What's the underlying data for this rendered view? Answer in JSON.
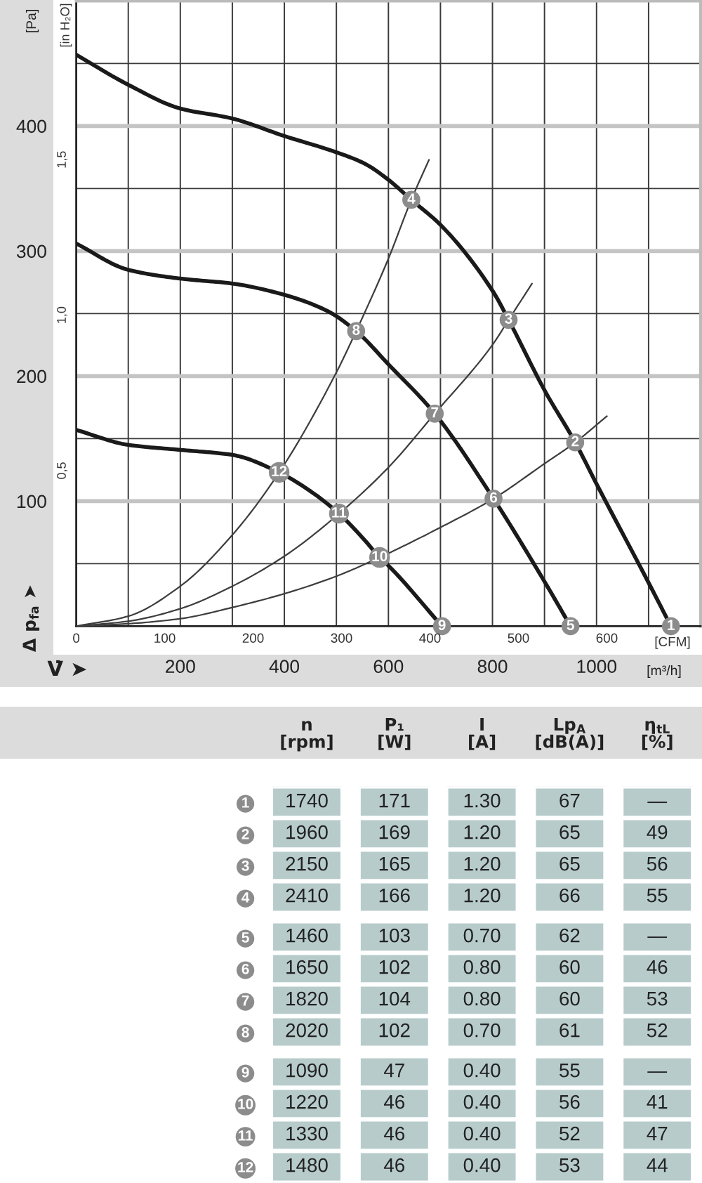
{
  "chart_data": [
    {
      "type": "line",
      "xlabel": "[m³/h]",
      "x2label": "[CFM]",
      "ylabel": "[Pa]",
      "y2label": "[in H₂O]",
      "xlim": [
        0,
        1200
      ],
      "xticks": [
        {
          "value": 100,
          "label": null
        },
        200,
        {
          "value": 300,
          "label": null
        },
        400,
        {
          "value": 500,
          "label": null
        },
        600,
        {
          "value": 700,
          "label": null
        },
        800,
        {
          "value": 900,
          "label": null
        },
        1000,
        {
          "value": 1100,
          "label": null
        }
      ],
      "x2lim": [
        0,
        706
      ],
      "x2ticks": [
        0,
        100,
        200,
        300,
        400,
        500,
        600
      ],
      "ylim": [
        0,
        500
      ],
      "yticks": [
        {
          "value": 50,
          "label": null
        },
        100,
        {
          "value": 150,
          "label": null
        },
        200,
        {
          "value": 250,
          "label": null
        },
        300,
        {
          "value": 350,
          "label": null
        },
        400,
        {
          "value": 450,
          "label": null
        }
      ],
      "y2lim": [
        0,
        2.01
      ],
      "y2ticks": [
        {
          "value": 0.5,
          "label": "0,5"
        },
        {
          "value": 1.0,
          "label": "1,0"
        },
        {
          "value": 1.5,
          "label": "1,5"
        }
      ],
      "grid": true,
      "series": [
        {
          "color": "#1a1a1a",
          "x": [
            0,
            100,
            200,
            300,
            400,
            500,
            554,
            600,
            644,
            700,
            802,
            831,
            901,
            959,
            1001,
            1101,
            1143
          ],
          "values": [
            457,
            433,
            414,
            406,
            392,
            379,
            370,
            357,
            341,
            321,
            267,
            245,
            188,
            147,
            113,
            34,
            0
          ]
        },
        {
          "color": "#1a1a1a",
          "x": [
            0,
            100,
            200,
            300,
            400,
            483,
            538,
            601,
            689,
            802,
            901,
            950
          ],
          "values": [
            306,
            285,
            278,
            274,
            265,
            252,
            236,
            209,
            170,
            102,
            35,
            0
          ]
        },
        {
          "color": "#1a1a1a",
          "x": [
            0,
            100,
            200,
            300,
            390,
            450,
            505,
            554,
            583,
            601,
            703
          ],
          "values": [
            157,
            145,
            141,
            137,
            123,
            108,
            90,
            69,
            55,
            48,
            0
          ]
        },
        {
          "color": "#3d3d3d",
          "x": [
            0,
            100,
            200,
            300,
            390,
            500,
            538,
            600,
            644,
            678
          ],
          "values": [
            0,
            8,
            32,
            73,
            123,
            203,
            236,
            294,
            341,
            373
          ]
        },
        {
          "color": "#3d3d3d",
          "x": [
            0,
            100,
            200,
            300,
            400,
            505,
            600,
            689,
            800,
            831,
            876
          ],
          "values": [
            0,
            4,
            14,
            32,
            56,
            90,
            127,
            170,
            225,
            245,
            274
          ]
        },
        {
          "color": "#3d3d3d",
          "x": [
            0,
            100,
            200,
            300,
            400,
            500,
            583,
            700,
            802,
            900,
            959,
            1020
          ],
          "values": [
            0,
            2,
            6,
            15,
            26,
            40,
            55,
            79,
            102,
            130,
            147,
            168
          ]
        }
      ],
      "annotations": [
        "V̇ ➤",
        "Δ p$_{fa}$ ➤",
        {
          "text": "1",
          "x": 1143,
          "y": 0
        },
        {
          "text": "2",
          "x": 959,
          "y": 147
        },
        {
          "text": "3",
          "x": 831,
          "y": 245
        },
        {
          "text": "4",
          "x": 644,
          "y": 341
        },
        {
          "text": "5",
          "x": 950,
          "y": 0
        },
        {
          "text": "6",
          "x": 802,
          "y": 102
        },
        {
          "text": "7",
          "x": 689,
          "y": 170
        },
        {
          "text": "8",
          "x": 538,
          "y": 236
        },
        {
          "text": "9",
          "x": 703,
          "y": 0
        },
        {
          "text": "10",
          "x": 583,
          "y": 55
        },
        {
          "text": "11",
          "x": 505,
          "y": 90
        },
        {
          "text": "12",
          "x": 390,
          "y": 123
        }
      ]
    },
    {
      "type": "heatmap",
      "categories": [
        "n\n[rpm]",
        "P₁\n[W]",
        "I\n[A]",
        "Lp$_{A}$\n[dB(A)]",
        "η$_{tL}$\n[%]"
      ],
      "y_categories": [
        "1",
        "2",
        "3",
        "4",
        "5",
        "6",
        "7",
        "8",
        "9",
        "10",
        "11",
        "12"
      ],
      "cells": [
        [
          null,
          null,
          null,
          null,
          null
        ],
        [
          null,
          null,
          null,
          null,
          null
        ],
        [
          null,
          null,
          null,
          null,
          null
        ],
        [
          null,
          null,
          null,
          null,
          null
        ],
        [
          null,
          null,
          null,
          null,
          null
        ],
        [
          null,
          null,
          null,
          null,
          null
        ],
        [
          null,
          null,
          null,
          null,
          null
        ],
        [
          null,
          null,
          null,
          null,
          null
        ],
        [
          null,
          null,
          null,
          null,
          null
        ],
        [
          null,
          null,
          null,
          null,
          null
        ],
        [
          null,
          null,
          null,
          null,
          null
        ],
        [
          null,
          null,
          null,
          null,
          null
        ]
      ],
      "cell_labels": [
        [
          "1740",
          "171",
          "1.30",
          "67",
          "—"
        ],
        [
          "1960",
          "169",
          "1.20",
          "65",
          "49"
        ],
        [
          "2150",
          "165",
          "1.20",
          "65",
          "56"
        ],
        [
          "2410",
          "166",
          "1.20",
          "66",
          "55"
        ],
        [
          "1460",
          "103",
          "0.70",
          "62",
          "—"
        ],
        [
          "1650",
          "102",
          "0.80",
          "60",
          "46"
        ],
        [
          "1820",
          "104",
          "0.80",
          "60",
          "53"
        ],
        [
          "2020",
          "102",
          "0.70",
          "61",
          "52"
        ],
        [
          "1090",
          "47",
          "0.40",
          "55",
          "—"
        ],
        [
          "1220",
          "46",
          "0.40",
          "56",
          "41"
        ],
        [
          "1330",
          "46",
          "0.40",
          "52",
          "47"
        ],
        [
          "1480",
          "46",
          "0.40",
          "53",
          "44"
        ]
      ]
    }
  ]
}
